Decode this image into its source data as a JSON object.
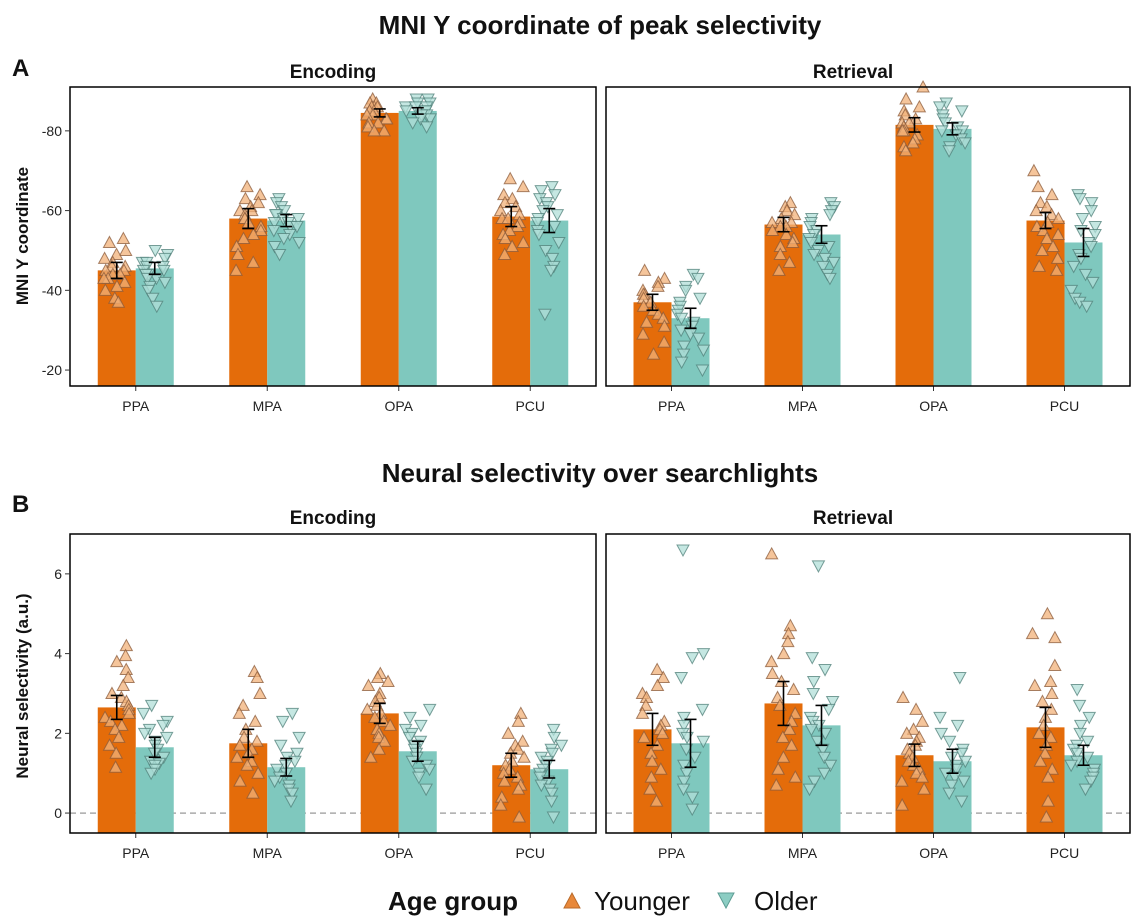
{
  "legend": {
    "title": "Age group",
    "items": [
      {
        "label": "Younger",
        "marker": "triangle-up",
        "color": "#E8883A"
      },
      {
        "label": "Older",
        "marker": "triangle-down",
        "color": "#8CCDC3"
      }
    ]
  },
  "colors": {
    "younger_bar": "#E46C0A",
    "older_bar": "#7FC8BE",
    "younger_point_fill": "#F2B27A",
    "older_point_fill": "#B2DFD8",
    "error_bar": "#000000",
    "zero_line": "#AAAAAA",
    "frame": "#000000"
  },
  "chart_data": [
    {
      "panel_letter": "A",
      "title": "MNI Y coordinate of peak selectivity",
      "type": "bar",
      "ylabel": "MNI Y coordinate",
      "ylim": [
        -16,
        -91
      ],
      "yticks": [
        -20,
        -40,
        -60,
        -80
      ],
      "ytick_labels": [
        "-20",
        "-40",
        "-60",
        "-80"
      ],
      "categories": [
        "PPA",
        "MPA",
        "OPA",
        "PCU"
      ],
      "zero_line": false,
      "facets": [
        {
          "name": "Encoding",
          "series": [
            {
              "name": "Younger",
              "values": [
                -45,
                -58,
                -84.5,
                -58.5
              ],
              "err": [
                2,
                2.5,
                1,
                2.5
              ],
              "points": [
                [
                  -53,
                  -52,
                  -50,
                  -49,
                  -48,
                  -47,
                  -46,
                  -46,
                  -45,
                  -45,
                  -44,
                  -44,
                  -43,
                  -43,
                  -42,
                  -41,
                  -40,
                  -38,
                  -37
                ],
                [
                  -66,
                  -64,
                  -63,
                  -62,
                  -61,
                  -60,
                  -60,
                  -59,
                  -58,
                  -58,
                  -57,
                  -56,
                  -55,
                  -54,
                  -53,
                  -51,
                  -49,
                  -47,
                  -45
                ],
                [
                  -88,
                  -87,
                  -87,
                  -86,
                  -86,
                  -86,
                  -85,
                  -85,
                  -84,
                  -84,
                  -83,
                  -83,
                  -82,
                  -82,
                  -81,
                  -80,
                  -80
                ],
                [
                  -68,
                  -66,
                  -64,
                  -63,
                  -62,
                  -61,
                  -60,
                  -59,
                  -58,
                  -58,
                  -57,
                  -56,
                  -55,
                  -54,
                  -53,
                  -52,
                  -51,
                  -49
                ]
              ]
            },
            {
              "name": "Older",
              "values": [
                -45.5,
                -57.5,
                -85,
                -57.5
              ],
              "err": [
                1.5,
                1.5,
                0.8,
                3
              ],
              "points": [
                [
                  -50,
                  -49,
                  -48,
                  -47,
                  -47,
                  -46,
                  -46,
                  -45,
                  -45,
                  -44,
                  -44,
                  -43,
                  -43,
                  -42,
                  -41,
                  -40,
                  -38,
                  -36
                ],
                [
                  -63,
                  -62,
                  -61,
                  -60,
                  -59,
                  -59,
                  -58,
                  -58,
                  -57,
                  -57,
                  -56,
                  -56,
                  -55,
                  -54,
                  -53,
                  -52,
                  -51,
                  -49
                ],
                [
                  -88,
                  -88,
                  -87,
                  -87,
                  -86,
                  -86,
                  -86,
                  -85,
                  -85,
                  -85,
                  -84,
                  -84,
                  -83,
                  -83,
                  -82,
                  -81
                ],
                [
                  -66,
                  -65,
                  -64,
                  -63,
                  -62,
                  -61,
                  -60,
                  -59,
                  -58,
                  -57,
                  -56,
                  -55,
                  -54,
                  -52,
                  -50,
                  -48,
                  -46,
                  -45,
                  -34
                ]
              ]
            }
          ]
        },
        {
          "name": "Retrieval",
          "series": [
            {
              "name": "Younger",
              "values": [
                -37,
                -56.5,
                -81.5,
                -57.5
              ],
              "err": [
                2,
                1.8,
                1.8,
                2
              ],
              "points": [
                [
                  -45,
                  -43,
                  -42,
                  -41,
                  -40,
                  -39,
                  -39,
                  -38,
                  -37,
                  -36,
                  -35,
                  -34,
                  -33,
                  -32,
                  -31,
                  -29,
                  -27,
                  -24
                ],
                [
                  -62,
                  -61,
                  -60,
                  -59,
                  -58,
                  -57,
                  -57,
                  -56,
                  -56,
                  -55,
                  -54,
                  -53,
                  -52,
                  -51,
                  -49,
                  -47,
                  -45
                ],
                [
                  -91,
                  -88,
                  -86,
                  -85,
                  -84,
                  -83,
                  -82,
                  -82,
                  -81,
                  -80,
                  -80,
                  -79,
                  -78,
                  -77,
                  -76,
                  -75
                ],
                [
                  -70,
                  -66,
                  -64,
                  -62,
                  -61,
                  -60,
                  -59,
                  -58,
                  -57,
                  -56,
                  -55,
                  -54,
                  -53,
                  -51,
                  -50,
                  -48,
                  -46,
                  -45
                ]
              ]
            },
            {
              "name": "Older",
              "values": [
                -33,
                -54,
                -80.5,
                -52
              ],
              "err": [
                2.5,
                2.2,
                1.5,
                3.5
              ],
              "points": [
                [
                  -44,
                  -43,
                  -41,
                  -40,
                  -38,
                  -37,
                  -36,
                  -35,
                  -34,
                  -33,
                  -32,
                  -31,
                  -30,
                  -29,
                  -28,
                  -26,
                  -25,
                  -24,
                  -22,
                  -20
                ],
                [
                  -62,
                  -61,
                  -60,
                  -59,
                  -58,
                  -57,
                  -56,
                  -55,
                  -54,
                  -53,
                  -52,
                  -51,
                  -50,
                  -49,
                  -48,
                  -47,
                  -46,
                  -44,
                  -43
                ],
                [
                  -87,
                  -86,
                  -85,
                  -84,
                  -83,
                  -82,
                  -81,
                  -80,
                  -80,
                  -79,
                  -78,
                  -77,
                  -76,
                  -75
                ],
                [
                  -64,
                  -63,
                  -62,
                  -60,
                  -58,
                  -56,
                  -55,
                  -54,
                  -52,
                  -51,
                  -49,
                  -48,
                  -46,
                  -44,
                  -42,
                  -40,
                  -38,
                  -37,
                  -36
                ]
              ]
            }
          ]
        }
      ]
    },
    {
      "panel_letter": "B",
      "title": "Neural selectivity over searchlights",
      "type": "bar",
      "ylabel": "Neural selectivity (a.u.)",
      "ylim": [
        -0.5,
        7.0
      ],
      "yticks": [
        0,
        2,
        4,
        6
      ],
      "ytick_labels": [
        "0",
        "2",
        "4",
        "6"
      ],
      "categories": [
        "PPA",
        "MPA",
        "OPA",
        "PCU"
      ],
      "zero_line": true,
      "facets": [
        {
          "name": "Encoding",
          "series": [
            {
              "name": "Younger",
              "values": [
                2.65,
                1.75,
                2.5,
                1.2
              ],
              "err": [
                0.3,
                0.35,
                0.25,
                0.3
              ],
              "points": [
                [
                  4.2,
                  3.95,
                  3.8,
                  3.6,
                  3.4,
                  3.2,
                  3.0,
                  2.9,
                  2.8,
                  2.7,
                  2.6,
                  2.5,
                  2.4,
                  2.3,
                  2.2,
                  2.1,
                  1.9,
                  1.7,
                  1.5,
                  1.15
                ],
                [
                  3.55,
                  3.4,
                  3.0,
                  2.7,
                  2.5,
                  2.3,
                  2.1,
                  1.9,
                  1.8,
                  1.7,
                  1.6,
                  1.5,
                  1.4,
                  1.3,
                  1.2,
                  1.0,
                  0.8,
                  0.5
                ],
                [
                  3.5,
                  3.4,
                  3.3,
                  3.2,
                  3.0,
                  2.9,
                  2.8,
                  2.7,
                  2.6,
                  2.5,
                  2.4,
                  2.3,
                  2.2,
                  2.1,
                  2.0,
                  1.9,
                  1.8,
                  1.6,
                  1.4
                ],
                [
                  2.5,
                  2.3,
                  2.0,
                  1.8,
                  1.7,
                  1.6,
                  1.5,
                  1.4,
                  1.3,
                  1.2,
                  1.1,
                  1.0,
                  0.9,
                  0.8,
                  0.7,
                  0.6,
                  0.4,
                  0.2,
                  -0.1
                ]
              ]
            },
            {
              "name": "Older",
              "values": [
                1.65,
                1.15,
                1.55,
                1.1
              ],
              "err": [
                0.25,
                0.22,
                0.25,
                0.22
              ],
              "points": [
                [
                  2.7,
                  2.5,
                  2.3,
                  2.2,
                  2.1,
                  2.0,
                  1.9,
                  1.8,
                  1.7,
                  1.6,
                  1.5,
                  1.4,
                  1.3,
                  1.25,
                  1.2,
                  1.1,
                  1.0
                ],
                [
                  2.5,
                  2.3,
                  1.9,
                  1.7,
                  1.5,
                  1.4,
                  1.3,
                  1.2,
                  1.1,
                  1.0,
                  0.9,
                  0.8,
                  0.7,
                  0.6,
                  0.5,
                  0.3
                ],
                [
                  2.6,
                  2.4,
                  2.2,
                  2.1,
                  2.0,
                  1.9,
                  1.8,
                  1.7,
                  1.6,
                  1.5,
                  1.4,
                  1.3,
                  1.2,
                  1.1,
                  1.0,
                  0.9,
                  0.6
                ],
                [
                  2.1,
                  1.9,
                  1.7,
                  1.6,
                  1.5,
                  1.4,
                  1.3,
                  1.2,
                  1.1,
                  1.0,
                  0.9,
                  0.8,
                  0.7,
                  0.6,
                  0.5,
                  0.3,
                  -0.1
                ]
              ]
            }
          ]
        },
        {
          "name": "Retrieval",
          "series": [
            {
              "name": "Younger",
              "values": [
                2.1,
                2.75,
                1.45,
                2.15
              ],
              "err": [
                0.4,
                0.55,
                0.28,
                0.5
              ],
              "points": [
                [
                  3.6,
                  3.4,
                  3.2,
                  3.0,
                  2.9,
                  2.7,
                  2.5,
                  2.3,
                  2.2,
                  2.1,
                  2.0,
                  1.9,
                  1.7,
                  1.5,
                  1.3,
                  1.1,
                  0.9,
                  0.6,
                  0.3
                ],
                [
                  6.5,
                  4.7,
                  4.5,
                  4.3,
                  4.0,
                  3.8,
                  3.5,
                  3.3,
                  3.1,
                  2.9,
                  2.7,
                  2.5,
                  2.3,
                  2.1,
                  1.9,
                  1.7,
                  1.4,
                  1.1,
                  0.9,
                  0.7
                ],
                [
                  2.9,
                  2.6,
                  2.3,
                  2.1,
                  2.0,
                  1.9,
                  1.8,
                  1.7,
                  1.6,
                  1.5,
                  1.4,
                  1.3,
                  1.2,
                  1.1,
                  1.0,
                  0.9,
                  0.8,
                  0.6,
                  0.2
                ],
                [
                  5.0,
                  4.5,
                  4.4,
                  3.7,
                  3.3,
                  3.2,
                  3.0,
                  2.8,
                  2.6,
                  2.4,
                  2.2,
                  2.0,
                  1.9,
                  1.7,
                  1.5,
                  1.3,
                  1.1,
                  0.9,
                  0.3,
                  -0.1
                ]
              ]
            },
            {
              "name": "Older",
              "values": [
                1.75,
                2.2,
                1.3,
                1.45
              ],
              "err": [
                0.6,
                0.5,
                0.3,
                0.25
              ],
              "points": [
                [
                  6.6,
                  4.0,
                  3.9,
                  3.4,
                  2.6,
                  2.4,
                  2.2,
                  2.0,
                  1.9,
                  1.8,
                  1.6,
                  1.4,
                  1.2,
                  1.0,
                  0.8,
                  0.6,
                  0.4,
                  0.1
                ],
                [
                  6.2,
                  3.9,
                  3.6,
                  3.3,
                  3.0,
                  2.8,
                  2.6,
                  2.4,
                  2.3,
                  2.2,
                  2.1,
                  2.0,
                  1.8,
                  1.6,
                  1.4,
                  1.2,
                  1.0,
                  0.8,
                  0.6
                ],
                [
                  3.4,
                  2.4,
                  2.2,
                  2.0,
                  1.8,
                  1.6,
                  1.5,
                  1.4,
                  1.3,
                  1.2,
                  1.1,
                  1.0,
                  0.9,
                  0.8,
                  0.7,
                  0.5,
                  0.3
                ],
                [
                  3.1,
                  2.7,
                  2.4,
                  2.2,
                  2.0,
                  1.8,
                  1.7,
                  1.6,
                  1.5,
                  1.4,
                  1.3,
                  1.2,
                  1.1,
                  1.0,
                  0.9,
                  0.8,
                  0.6
                ]
              ]
            }
          ]
        }
      ]
    }
  ]
}
